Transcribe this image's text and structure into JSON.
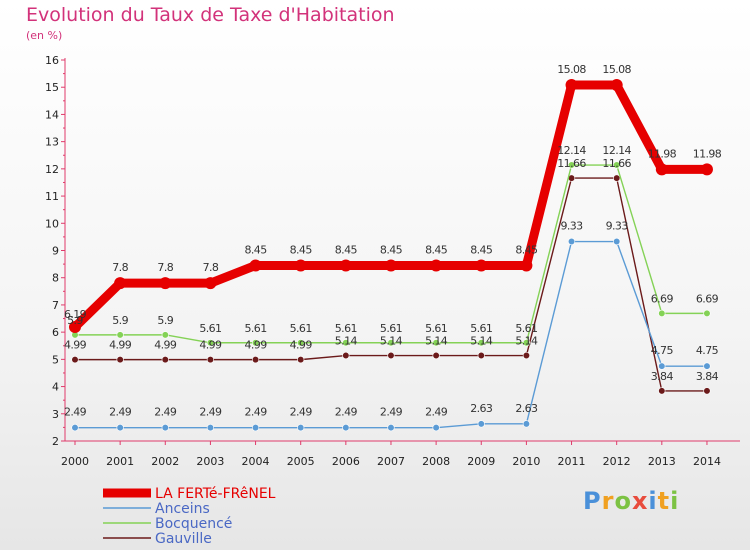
{
  "chart_data": {
    "type": "line",
    "title": "Evolution du Taux de Taxe d'Habitation",
    "unit": "(en %)",
    "x": [
      "2000",
      "2001",
      "2002",
      "2003",
      "2004",
      "2005",
      "2006",
      "2007",
      "2008",
      "2009",
      "2010",
      "2011",
      "2012",
      "2013",
      "2014"
    ],
    "ylim": [
      2,
      16
    ],
    "yticks": [
      2,
      3,
      4,
      5,
      6,
      7,
      8,
      9,
      10,
      11,
      12,
      13,
      14,
      15,
      16
    ],
    "grid": false,
    "legend_position": "bottom-left",
    "series": [
      {
        "name": "LA FERTé-FRêNEL",
        "color": "#e60000",
        "values": [
          6.19,
          7.8,
          7.8,
          7.8,
          8.45,
          8.45,
          8.45,
          8.45,
          8.45,
          8.45,
          8.45,
          15.08,
          15.08,
          11.98,
          11.98
        ],
        "labels": [
          "6.19",
          "7.8",
          "7.8",
          "7.8",
          "8.45",
          "8.45",
          "8.45",
          "8.45",
          "8.45",
          "8.45",
          "8.45",
          "15.08",
          "15.08",
          "11.98",
          "11.98"
        ]
      },
      {
        "name": "Anceins",
        "color": "#5b9bd5",
        "values": [
          2.49,
          2.49,
          2.49,
          2.49,
          2.49,
          2.49,
          2.49,
          2.49,
          2.49,
          2.63,
          2.63,
          9.33,
          9.33,
          4.75,
          4.75
        ],
        "labels": [
          "2.49",
          "2.49",
          "2.49",
          "2.49",
          "2.49",
          "2.49",
          "2.49",
          "2.49",
          "2.49",
          "2.63",
          "2.63",
          "9.33",
          "9.33",
          "4.75",
          "4.75"
        ]
      },
      {
        "name": "Bocquencé",
        "color": "#84d256",
        "values": [
          5.9,
          5.9,
          5.9,
          5.61,
          5.61,
          5.61,
          5.61,
          5.61,
          5.61,
          5.61,
          5.61,
          12.14,
          12.14,
          6.69,
          6.69
        ],
        "labels": [
          "5.9",
          "5.9",
          "5.9",
          "5.61",
          "5.61",
          "5.61",
          "5.61",
          "5.61",
          "5.61",
          "5.61",
          "5.61",
          "12.14",
          "12.14",
          "6.69",
          "6.69"
        ]
      },
      {
        "name": "Gauville",
        "color": "#6b1a1a",
        "values": [
          4.99,
          4.99,
          4.99,
          4.99,
          4.99,
          4.99,
          5.14,
          5.14,
          5.14,
          5.14,
          5.14,
          11.66,
          11.66,
          3.84,
          3.84
        ],
        "labels": [
          "4.99",
          "4.99",
          "4.99",
          "4.99",
          "4.99",
          "4.99",
          "5.14",
          "5.14",
          "5.14",
          "5.14",
          "5.14",
          "11.66",
          "11.66",
          "3.84",
          "3.84"
        ]
      }
    ]
  },
  "brand": {
    "letters": [
      "P",
      "r",
      "o",
      "x",
      "i",
      "t",
      "i"
    ],
    "colors": [
      "#4a90d9",
      "#f0a020",
      "#7cc243",
      "#e84c3d",
      "#4a90d9",
      "#f0a020",
      "#7cc243"
    ]
  }
}
